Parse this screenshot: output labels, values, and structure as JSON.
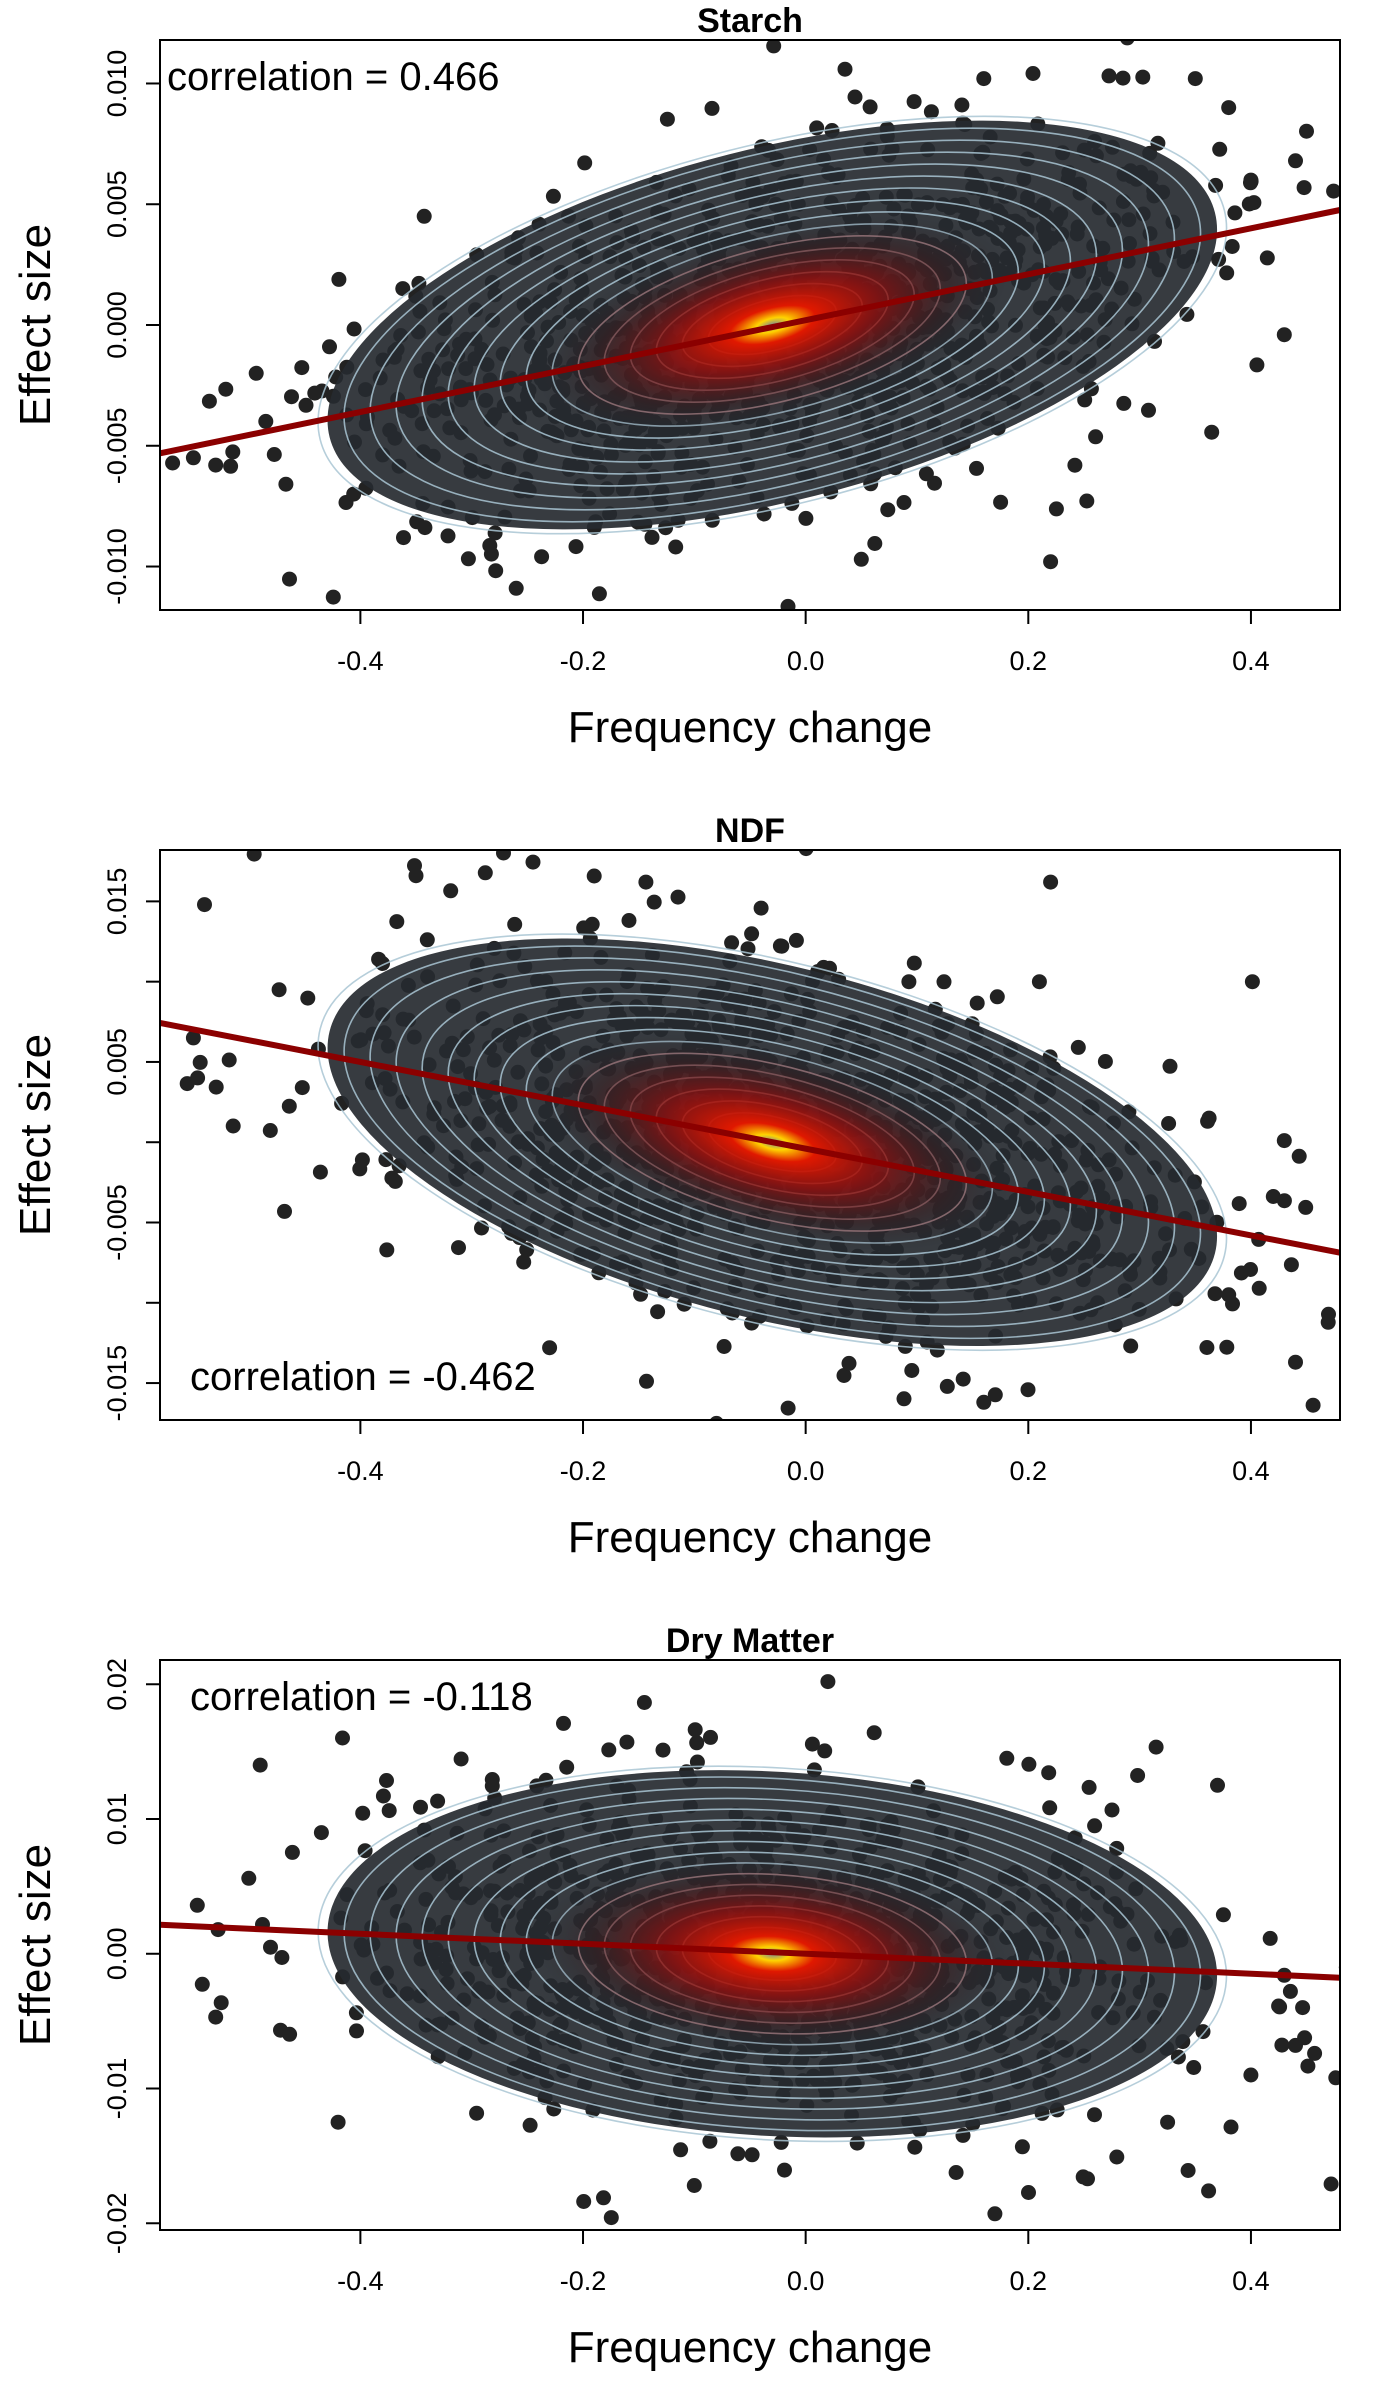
{
  "chart_data": [
    {
      "type": "scatter",
      "title": "Starch",
      "xlabel": "Frequency change",
      "ylabel": "Effect size",
      "annotation": "correlation = 0.466",
      "annotation_position": "top-left",
      "xlim": [
        -0.58,
        0.48
      ],
      "ylim": [
        -0.0118,
        0.0118
      ],
      "xticks": [
        -0.4,
        -0.2,
        0.0,
        0.2,
        0.4
      ],
      "xtick_labels": [
        "-0.4",
        "-0.2",
        "0.0",
        "0.2",
        "0.4"
      ],
      "yticks": [
        -0.01,
        -0.005,
        0.0,
        0.005,
        0.01
      ],
      "ytick_labels": [
        "-0.010",
        "-0.005",
        "0.000",
        "0.005",
        "0.010"
      ],
      "correlation": 0.466,
      "point_cloud": {
        "cx": -0.03,
        "cy": 0.0,
        "sx": 0.17,
        "sy": 0.0036,
        "rho": 0.466,
        "n": 1100,
        "seed": 11
      },
      "outliers": [
        [
          0.44,
          0.0068
        ],
        [
          0.43,
          -0.0004
        ],
        [
          0.4,
          0.006
        ],
        [
          0.38,
          0.009
        ],
        [
          0.35,
          0.0102
        ],
        [
          0.22,
          -0.0098
        ],
        [
          0.16,
          0.0102
        ],
        [
          0.05,
          -0.0097
        ],
        [
          -0.26,
          -0.0109
        ],
        [
          -0.53,
          -0.0058
        ],
        [
          -0.55,
          -0.0055
        ]
      ],
      "fit_line": {
        "slope": 0.0095,
        "intercept": 0.0002
      },
      "colors": {
        "points": "#222222",
        "fit": "#8b0000",
        "contour": "#a9c6d3",
        "hot": "#e01800",
        "core": "#ffd400"
      }
    },
    {
      "type": "scatter",
      "title": "NDF",
      "xlabel": "Frequency change",
      "ylabel": "Effect size",
      "annotation": "correlation = -0.462",
      "annotation_position": "bottom-left",
      "xlim": [
        -0.58,
        0.48
      ],
      "ylim": [
        -0.0173,
        0.0182
      ],
      "xticks": [
        -0.4,
        -0.2,
        0.0,
        0.2,
        0.4
      ],
      "xtick_labels": [
        "-0.4",
        "-0.2",
        "0.0",
        "0.2",
        "0.4"
      ],
      "yticks": [
        -0.015,
        -0.01,
        -0.005,
        0.0,
        0.005,
        0.01,
        0.015
      ],
      "ytick_labels": [
        "-0.015",
        "",
        "-0.005",
        "",
        "0.005",
        "",
        "0.015"
      ],
      "correlation": -0.462,
      "point_cloud": {
        "cx": -0.03,
        "cy": 0.0,
        "sx": 0.17,
        "sy": 0.0054,
        "rho": -0.462,
        "n": 1100,
        "seed": 23
      },
      "outliers": [
        [
          0.44,
          -0.0137
        ],
        [
          0.43,
          0.0001
        ],
        [
          0.38,
          -0.0095
        ],
        [
          0.22,
          0.0162
        ],
        [
          0.21,
          0.01
        ],
        [
          0.16,
          -0.0162
        ],
        [
          -0.23,
          -0.0128
        ],
        [
          -0.35,
          0.0166
        ],
        [
          -0.54,
          0.0148
        ],
        [
          -0.55,
          0.0065
        ]
      ],
      "fit_line": {
        "slope": -0.0135,
        "intercept": -0.0004
      },
      "colors": {
        "points": "#222222",
        "fit": "#8b0000",
        "contour": "#a9c6d3",
        "hot": "#e01800",
        "core": "#ffd400"
      }
    },
    {
      "type": "scatter",
      "title": "Dry Matter",
      "xlabel": "Frequency change",
      "ylabel": "Effect size",
      "annotation": "correlation = -0.118",
      "annotation_position": "top-left",
      "xlim": [
        -0.58,
        0.48
      ],
      "ylim": [
        -0.0205,
        0.0218
      ],
      "xticks": [
        -0.4,
        -0.2,
        0.0,
        0.2,
        0.4
      ],
      "xtick_labels": [
        "-0.4",
        "-0.2",
        "0.0",
        "0.2",
        "0.4"
      ],
      "yticks": [
        -0.02,
        -0.01,
        0.0,
        0.01,
        0.02
      ],
      "ytick_labels": [
        "-0.02",
        "-0.01",
        "0.00",
        "0.01",
        "0.02"
      ],
      "correlation": -0.118,
      "point_cloud": {
        "cx": -0.03,
        "cy": 0.0,
        "sx": 0.17,
        "sy": 0.0058,
        "rho": -0.118,
        "n": 1100,
        "seed": 37
      },
      "outliers": [
        [
          0.44,
          -0.0068
        ],
        [
          0.43,
          -0.0016
        ],
        [
          0.4,
          -0.009
        ],
        [
          0.37,
          0.0125
        ],
        [
          0.17,
          -0.0193
        ],
        [
          0.02,
          0.0202
        ],
        [
          -0.1,
          -0.0172
        ],
        [
          -0.42,
          -0.0125
        ],
        [
          -0.49,
          0.014
        ],
        [
          -0.53,
          -0.0047
        ]
      ],
      "fit_line": {
        "slope": -0.0037,
        "intercept": 0.0
      },
      "colors": {
        "points": "#222222",
        "fit": "#8b0000",
        "contour": "#a9c6d3",
        "hot": "#e01800",
        "core": "#ffd400"
      }
    }
  ]
}
